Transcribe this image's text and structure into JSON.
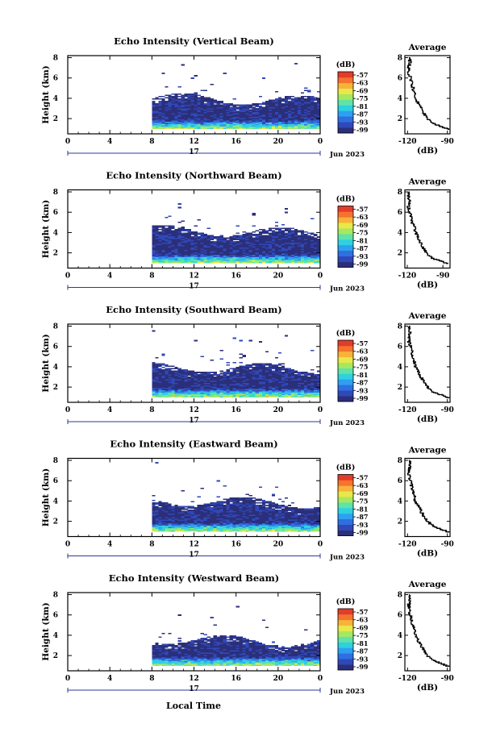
{
  "figure": {
    "xlabel": "Local Time",
    "colorbar_title": "(dB)",
    "colorbar_ticks": [
      "-57",
      "-63",
      "-69",
      "-75",
      "-81",
      "-87",
      "-93",
      "-99"
    ],
    "avg_title": "Average",
    "avg_xlabel": "(dB)",
    "colormap": [
      "#2b2f7a",
      "#3048b8",
      "#2f6fe0",
      "#2ea0f0",
      "#2fd0e0",
      "#5fe3a8",
      "#a7e85f",
      "#e8e84a",
      "#f7b23a",
      "#f4732e",
      "#e23c2a"
    ]
  },
  "chart_data": [
    {
      "type": "heatmap",
      "title": "Echo Intensity (Vertical Beam)",
      "ylabel": "Height (km)",
      "x_ticks": [
        "0",
        "4",
        "8",
        "12",
        "16",
        "20",
        "0"
      ],
      "y_ticks": [
        "2",
        "4",
        "6",
        "8"
      ],
      "date_day": "17",
      "date_month": "Jun 2023",
      "xlim": [
        0,
        24
      ],
      "ylim": [
        0.5,
        8.2
      ],
      "data_start_hour": 8,
      "echo_top_km": 4.0,
      "average": {
        "x_ticks": [
          "-120",
          "-90"
        ],
        "y_ticks": [
          "2",
          "4",
          "6",
          "8"
        ],
        "xlim": [
          -122,
          -88
        ],
        "height_km": [
          0.9,
          1.2,
          1.5,
          2.0,
          2.5,
          3.0,
          3.5,
          4.0,
          4.5,
          5.0,
          5.5,
          6.0,
          6.5,
          7.0,
          7.5,
          8.0
        ],
        "db": [
          -89,
          -95,
          -101,
          -105,
          -108,
          -110,
          -112,
          -114,
          -115,
          -116,
          -117,
          -118,
          -119,
          -119,
          -118,
          -119
        ]
      }
    },
    {
      "type": "heatmap",
      "title": "Echo Intensity (Northward Beam)",
      "ylabel": "Height (km)",
      "x_ticks": [
        "0",
        "4",
        "8",
        "12",
        "16",
        "20",
        "0"
      ],
      "y_ticks": [
        "2",
        "4",
        "6",
        "8"
      ],
      "date_day": "17",
      "date_month": "Jun 2023",
      "xlim": [
        0,
        24
      ],
      "ylim": [
        0.5,
        8.2
      ],
      "data_start_hour": 8,
      "echo_top_km": 4.2,
      "average": {
        "x_ticks": [
          "-120",
          "-90"
        ],
        "y_ticks": [
          "2",
          "4",
          "6",
          "8"
        ],
        "xlim": [
          -122,
          -84
        ],
        "height_km": [
          0.9,
          1.2,
          1.5,
          2.0,
          2.5,
          3.0,
          3.5,
          4.0,
          4.5,
          5.0,
          5.5,
          6.0,
          6.5,
          7.0,
          7.5,
          8.0
        ],
        "db": [
          -86,
          -93,
          -100,
          -104,
          -107,
          -109,
          -111,
          -113,
          -114,
          -116,
          -117,
          -118,
          -119,
          -118,
          -119,
          -119
        ]
      }
    },
    {
      "type": "heatmap",
      "title": "Echo Intensity (Southward Beam)",
      "ylabel": "Height (km)",
      "x_ticks": [
        "0",
        "4",
        "8",
        "12",
        "16",
        "20",
        "0"
      ],
      "y_ticks": [
        "2",
        "4",
        "6",
        "8"
      ],
      "date_day": "17",
      "date_month": "Jun 2023",
      "xlim": [
        0,
        24
      ],
      "ylim": [
        0.5,
        8.2
      ],
      "data_start_hour": 8,
      "echo_top_km": 4.0,
      "average": {
        "x_ticks": [
          "-120",
          "-90"
        ],
        "y_ticks": [
          "2",
          "4",
          "6",
          "8"
        ],
        "xlim": [
          -122,
          -88
        ],
        "height_km": [
          0.9,
          1.2,
          1.5,
          2.0,
          2.5,
          3.0,
          3.5,
          4.0,
          4.5,
          5.0,
          5.5,
          6.0,
          6.5,
          7.0,
          7.5,
          8.0
        ],
        "db": [
          -89,
          -95,
          -101,
          -105,
          -108,
          -110,
          -112,
          -114,
          -115,
          -116,
          -117,
          -118,
          -119,
          -119,
          -118,
          -119
        ]
      }
    },
    {
      "type": "heatmap",
      "title": "Echo Intensity (Eastward Beam)",
      "ylabel": "Height (km)",
      "x_ticks": [
        "0",
        "4",
        "8",
        "12",
        "16",
        "20",
        "0"
      ],
      "y_ticks": [
        "2",
        "4",
        "6",
        "8"
      ],
      "date_day": "17",
      "date_month": "Jun 2023",
      "xlim": [
        0,
        24
      ],
      "ylim": [
        0.5,
        8.2
      ],
      "data_start_hour": 8,
      "echo_top_km": 4.0,
      "average": {
        "x_ticks": [
          "-120",
          "-90"
        ],
        "y_ticks": [
          "2",
          "4",
          "6",
          "8"
        ],
        "xlim": [
          -122,
          -88
        ],
        "height_km": [
          0.9,
          1.2,
          1.5,
          2.0,
          2.5,
          3.0,
          3.5,
          4.0,
          4.5,
          5.0,
          5.5,
          6.0,
          6.5,
          7.0,
          7.5,
          8.0
        ],
        "db": [
          -89,
          -95,
          -101,
          -105,
          -108,
          -110,
          -112,
          -114,
          -115,
          -116,
          -117,
          -118,
          -119,
          -119,
          -118,
          -119
        ]
      }
    },
    {
      "type": "heatmap",
      "title": "Echo Intensity (Westward Beam)",
      "ylabel": "Height (km)",
      "x_ticks": [
        "0",
        "4",
        "8",
        "12",
        "16",
        "20",
        "0"
      ],
      "y_ticks": [
        "2",
        "4",
        "6",
        "8"
      ],
      "date_day": "17",
      "date_month": "Jun 2023",
      "xlim": [
        0,
        24
      ],
      "ylim": [
        0.5,
        8.2
      ],
      "data_start_hour": 8,
      "echo_top_km": 3.6,
      "average": {
        "x_ticks": [
          "-120",
          "-90"
        ],
        "y_ticks": [
          "2",
          "4",
          "6",
          "8"
        ],
        "xlim": [
          -122,
          -88
        ],
        "height_km": [
          0.9,
          1.2,
          1.5,
          2.0,
          2.5,
          3.0,
          3.5,
          4.0,
          4.5,
          5.0,
          5.5,
          6.0,
          6.5,
          7.0,
          7.5,
          8.0
        ],
        "db": [
          -89,
          -95,
          -101,
          -105,
          -108,
          -110,
          -112,
          -114,
          -115,
          -116,
          -117,
          -118,
          -119,
          -119,
          -118,
          -119
        ]
      }
    }
  ]
}
